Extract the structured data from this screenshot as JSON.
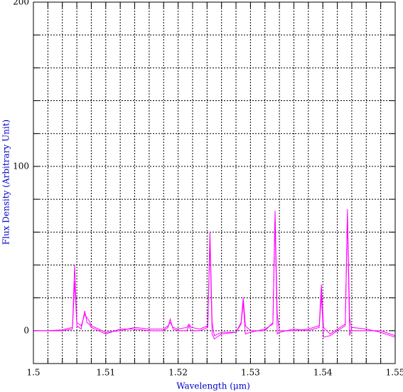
{
  "chart_data": {
    "type": "line",
    "x_label": "Wavelength (μm)",
    "y_label": "Flux Density (Arbitrary Unit)",
    "x": [
      1.5,
      1.502,
      1.504,
      1.5054,
      1.5057,
      1.506,
      1.5066,
      1.5071,
      1.5074,
      1.5077,
      1.508,
      1.509,
      1.51,
      1.512,
      1.514,
      1.516,
      1.518,
      1.5186,
      1.5189,
      1.5193,
      1.52,
      1.5212,
      1.5215,
      1.5218,
      1.523,
      1.5241,
      1.5244,
      1.5247,
      1.525,
      1.526,
      1.528,
      1.5287,
      1.529,
      1.5293,
      1.53,
      1.532,
      1.5331,
      1.5334,
      1.5337,
      1.534,
      1.536,
      1.538,
      1.5395,
      1.5398,
      1.5401,
      1.541,
      1.5431,
      1.5434,
      1.5437,
      1.544,
      1.546,
      1.548,
      1.55
    ],
    "series": [
      {
        "color": "#ff00ff",
        "values": [
          0,
          0,
          0.5,
          2,
          40,
          3,
          1,
          12,
          5,
          4,
          2,
          0,
          -2,
          1,
          1,
          0,
          0,
          2,
          7,
          1,
          0,
          0,
          3,
          0,
          0,
          2,
          60,
          5,
          -3,
          -1,
          -1,
          5,
          20,
          3,
          0,
          0,
          5,
          73,
          10,
          0,
          0,
          1,
          3,
          28,
          2,
          -2,
          4,
          74,
          8,
          0,
          0,
          0,
          -3
        ]
      },
      {
        "color": "#ff00ff",
        "values": [
          0,
          0,
          0,
          1,
          30,
          5,
          3,
          10,
          8,
          6,
          3,
          1,
          -1,
          0,
          2,
          1,
          1,
          3,
          5,
          2,
          1,
          2,
          4,
          2,
          1,
          3,
          55,
          -2,
          -5,
          -2,
          -1,
          4,
          17,
          -2,
          -1,
          1,
          4,
          68,
          -2,
          -1,
          1,
          0,
          2,
          22,
          -4,
          -3,
          3,
          70,
          -3,
          2,
          1,
          -1,
          -4
        ]
      }
    ],
    "xlim": [
      1.5,
      1.55
    ],
    "xticks": [
      1.5,
      1.51,
      1.52,
      1.53,
      1.54,
      1.55
    ],
    "x_minor_ticks": [
      1.502,
      1.504,
      1.506,
      1.508,
      1.512,
      1.514,
      1.516,
      1.518,
      1.522,
      1.524,
      1.526,
      1.528,
      1.532,
      1.534,
      1.536,
      1.538,
      1.542,
      1.544,
      1.546,
      1.548
    ],
    "ylim": [
      -20,
      200
    ],
    "yticks": [
      0,
      100,
      200
    ],
    "y_minor_ticks": [
      20,
      40,
      60,
      80,
      120,
      140,
      160,
      180
    ],
    "grid": true,
    "label_color": "#0000cc"
  }
}
